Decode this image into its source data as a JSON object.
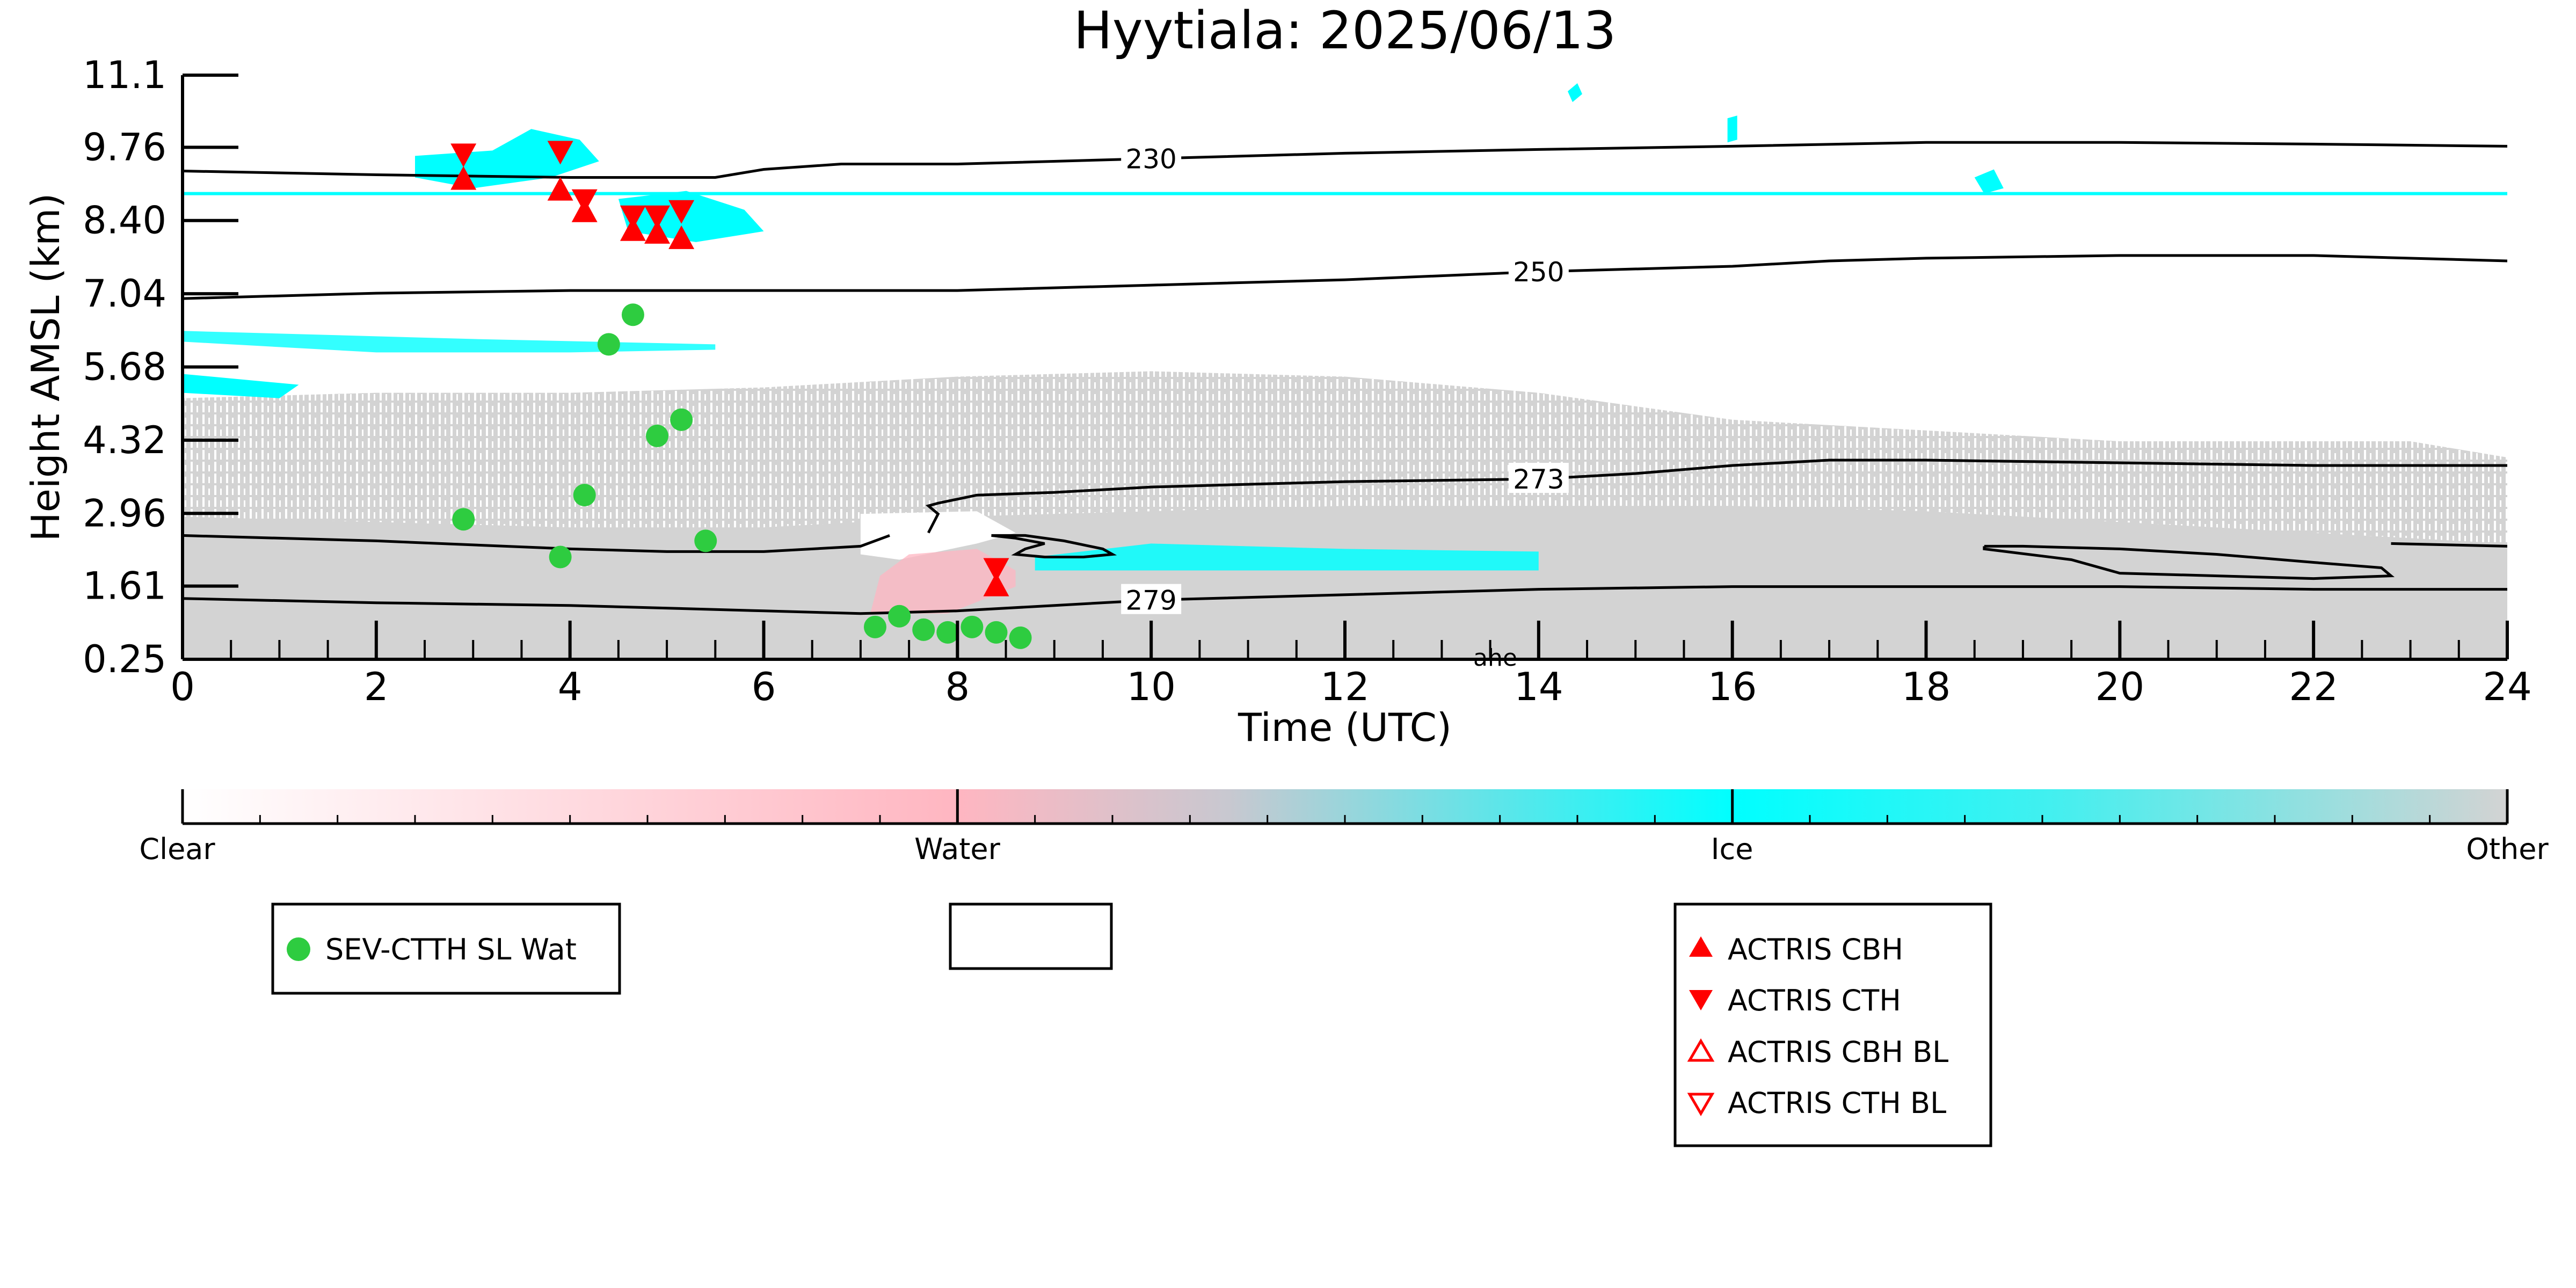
{
  "chart_data": {
    "type": "scatter",
    "title": "Hyytiala: 2025/06/13",
    "xlabel": "Time (UTC)",
    "ylabel": "Height AMSL (km)",
    "xlim": [
      0,
      24
    ],
    "ylim": [
      0.25,
      11.1
    ],
    "x_ticks": [
      "0",
      "2",
      "4",
      "6",
      "8",
      "10",
      "12",
      "14",
      "16",
      "18",
      "20",
      "22",
      "24"
    ],
    "y_ticks": [
      "0.25",
      "1.61",
      "2.96",
      "4.32",
      "5.68",
      "7.04",
      "8.40",
      "9.76",
      "11.1"
    ],
    "background": {
      "description": "cloud classification curtain",
      "colors": {
        "clear": "#ffffff",
        "water": "#ffb6c1",
        "ice": "#00ffff",
        "other": "#d3d3d3"
      }
    },
    "colorbar": {
      "labels": [
        "Clear",
        "Water",
        "Ice",
        "Other"
      ]
    },
    "contours": [
      {
        "label": "230",
        "points": [
          [
            0,
            9.32
          ],
          [
            2,
            9.25
          ],
          [
            4,
            9.2
          ],
          [
            5.5,
            9.2
          ],
          [
            6,
            9.35
          ],
          [
            6.8,
            9.45
          ],
          [
            8,
            9.45
          ],
          [
            10,
            9.55
          ],
          [
            12,
            9.65
          ],
          [
            14,
            9.72
          ],
          [
            16,
            9.78
          ],
          [
            18,
            9.85
          ],
          [
            20,
            9.85
          ],
          [
            22,
            9.82
          ],
          [
            24,
            9.78
          ]
        ]
      },
      {
        "label": "250",
        "points": [
          [
            0,
            6.95
          ],
          [
            2,
            7.05
          ],
          [
            4,
            7.1
          ],
          [
            6,
            7.1
          ],
          [
            8,
            7.1
          ],
          [
            10,
            7.2
          ],
          [
            12,
            7.3
          ],
          [
            14,
            7.45
          ],
          [
            16,
            7.55
          ],
          [
            17,
            7.65
          ],
          [
            18,
            7.7
          ],
          [
            20,
            7.75
          ],
          [
            22,
            7.75
          ],
          [
            24,
            7.65
          ]
        ]
      },
      {
        "label": "273",
        "points": [
          [
            7.7,
            2.6
          ],
          [
            7.8,
            2.95
          ],
          [
            7.7,
            3.1
          ],
          [
            7.8,
            3.15
          ],
          [
            8.2,
            3.3
          ],
          [
            9,
            3.35
          ],
          [
            10,
            3.45
          ],
          [
            12,
            3.55
          ],
          [
            14,
            3.6
          ],
          [
            15,
            3.7
          ],
          [
            16,
            3.85
          ],
          [
            17,
            3.95
          ],
          [
            18,
            3.95
          ],
          [
            20,
            3.9
          ],
          [
            22,
            3.85
          ],
          [
            24,
            3.85
          ]
        ]
      },
      {
        "label": "279",
        "points": [
          [
            0,
            1.38
          ],
          [
            2,
            1.3
          ],
          [
            4,
            1.25
          ],
          [
            6,
            1.15
          ],
          [
            7,
            1.1
          ],
          [
            8,
            1.15
          ],
          [
            9,
            1.25
          ],
          [
            10,
            1.35
          ],
          [
            12,
            1.45
          ],
          [
            14,
            1.55
          ],
          [
            16,
            1.6
          ],
          [
            18,
            1.6
          ],
          [
            20,
            1.6
          ],
          [
            22,
            1.55
          ],
          [
            24,
            1.55
          ]
        ]
      },
      {
        "label": "",
        "points": [
          [
            0,
            2.55
          ],
          [
            2,
            2.45
          ],
          [
            4,
            2.3
          ],
          [
            5,
            2.25
          ],
          [
            6,
            2.25
          ],
          [
            7,
            2.35
          ],
          [
            7.3,
            2.55
          ]
        ]
      },
      {
        "label": "",
        "points": [
          [
            8.35,
            2.55
          ],
          [
            8.7,
            2.55
          ],
          [
            9.1,
            2.45
          ],
          [
            9.5,
            2.3
          ],
          [
            9.6,
            2.2
          ],
          [
            9.3,
            2.15
          ],
          [
            8.9,
            2.15
          ],
          [
            8.6,
            2.2
          ],
          [
            8.7,
            2.3
          ],
          [
            8.9,
            2.4
          ],
          [
            8.6,
            2.5
          ],
          [
            8.35,
            2.55
          ]
        ]
      },
      {
        "label": "",
        "points": [
          [
            18.6,
            2.35
          ],
          [
            19,
            2.35
          ],
          [
            20,
            2.3
          ],
          [
            21,
            2.2
          ],
          [
            22,
            2.05
          ],
          [
            22.7,
            1.95
          ],
          [
            22.8,
            1.8
          ],
          [
            22,
            1.75
          ],
          [
            20,
            1.85
          ],
          [
            19.5,
            2.1
          ],
          [
            18.6,
            2.3
          ],
          [
            18.6,
            2.35
          ]
        ]
      },
      {
        "label": "",
        "points": [
          [
            22.8,
            2.4
          ],
          [
            24,
            2.35
          ]
        ]
      }
    ],
    "series": [
      {
        "name": "SEV-CTTH SL Wat",
        "marker": "circle",
        "color": "#2ecc40",
        "x": [
          2.9,
          3.9,
          4.15,
          4.4,
          4.65,
          4.9,
          5.15,
          5.4,
          7.15,
          7.4,
          7.65,
          7.9,
          8.15,
          8.4,
          8.65
        ],
        "y": [
          2.85,
          2.15,
          3.3,
          6.1,
          6.65,
          4.4,
          4.7,
          2.45,
          0.85,
          1.05,
          0.8,
          0.75,
          0.85,
          0.75,
          0.65
        ]
      },
      {
        "name": "ACTRIS CBH",
        "marker": "triangle-up",
        "color": "#ff0000",
        "x": [
          2.9,
          3.9,
          4.15,
          4.65,
          4.9,
          5.15,
          8.4
        ],
        "y": [
          9.15,
          8.95,
          8.55,
          8.2,
          8.15,
          8.05,
          1.6
        ]
      },
      {
        "name": "ACTRIS CTH",
        "marker": "triangle-down",
        "color": "#ff0000",
        "x": [
          2.9,
          3.9,
          4.15,
          4.65,
          4.9,
          5.15,
          8.4
        ],
        "y": [
          9.65,
          9.7,
          8.8,
          8.5,
          8.5,
          8.6,
          1.95
        ]
      },
      {
        "name": "ACTRIS CBH BL",
        "marker": "triangle-up-open",
        "color": "#ff0000",
        "x": [],
        "y": []
      },
      {
        "name": "ACTRIS CTH BL",
        "marker": "triangle-down-open",
        "color": "#ff0000",
        "x": [],
        "y": []
      }
    ],
    "legends": [
      {
        "entries": [
          "SEV-CTTH SL Wat"
        ]
      },
      {
        "entries": []
      },
      {
        "entries": [
          "ACTRIS CBH",
          "ACTRIS CTH",
          "ACTRIS CBH BL",
          "ACTRIS CTH BL"
        ]
      }
    ],
    "annotations": [
      "ahe"
    ]
  }
}
